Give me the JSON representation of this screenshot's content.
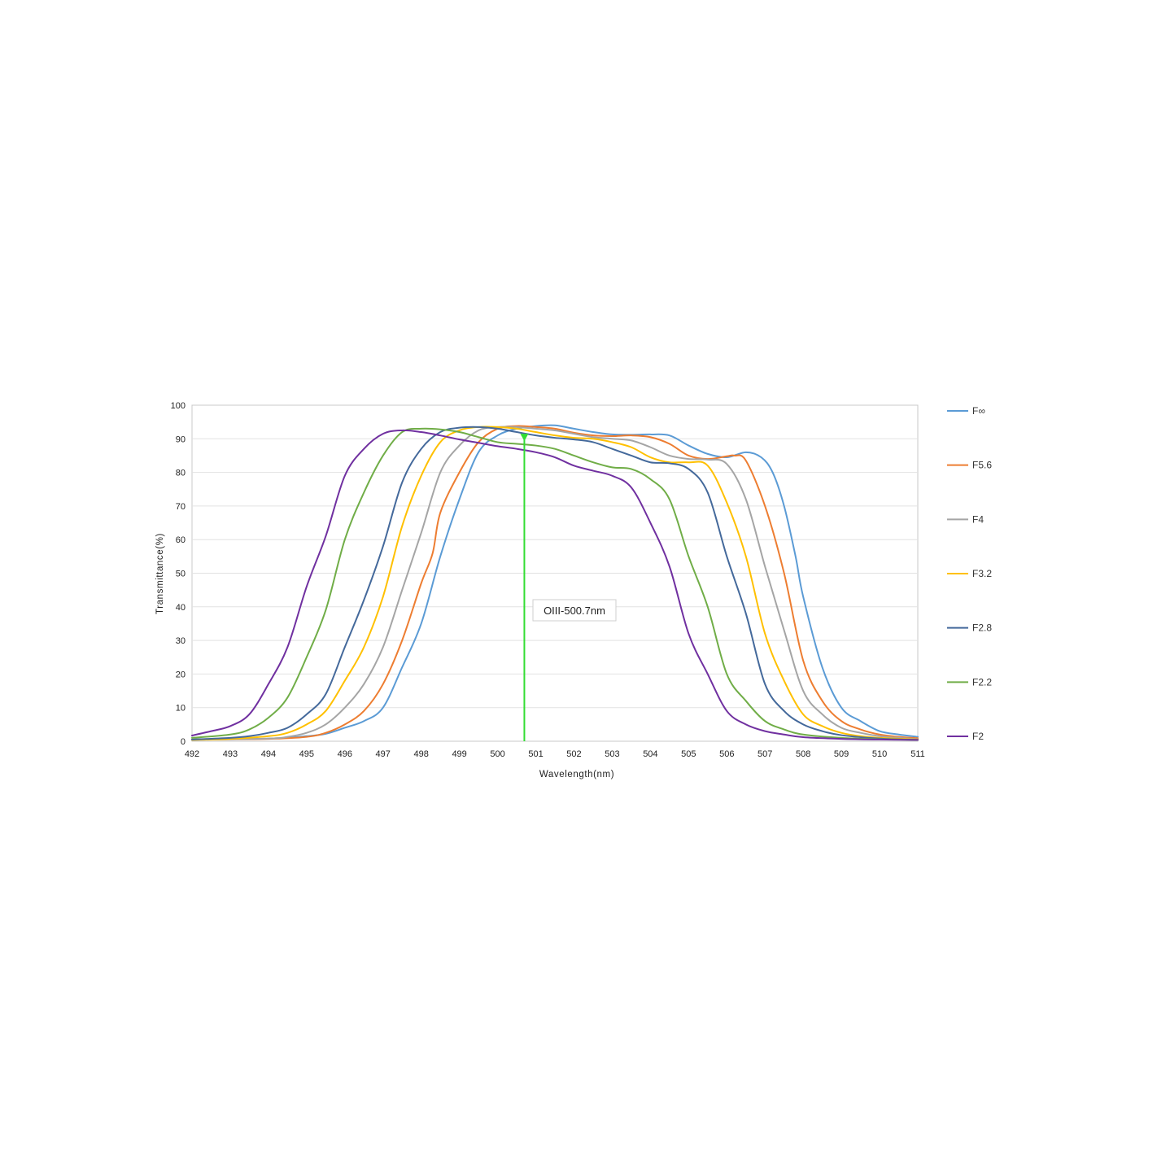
{
  "chart_data": {
    "type": "line",
    "title": "",
    "xlabel": "Wavelength(nm)",
    "ylabel": "Transmittance(%)",
    "xlim": [
      492,
      511
    ],
    "ylim": [
      0,
      100
    ],
    "x_ticks": [
      492,
      493,
      494,
      495,
      496,
      497,
      498,
      499,
      500,
      501,
      502,
      503,
      504,
      505,
      506,
      507,
      508,
      509,
      510,
      511
    ],
    "y_ticks": [
      0,
      10,
      20,
      30,
      40,
      50,
      60,
      70,
      80,
      90,
      100
    ],
    "grid": "horizontal",
    "legend_position": "right",
    "series": [
      {
        "name": "F∞",
        "color": "#5b9bd5",
        "points": [
          [
            492,
            0.5
          ],
          [
            494,
            0.8
          ],
          [
            495,
            1.5
          ],
          [
            495.5,
            2.2
          ],
          [
            496,
            4
          ],
          [
            496.5,
            6
          ],
          [
            497,
            10
          ],
          [
            497.5,
            22
          ],
          [
            498,
            35
          ],
          [
            498.5,
            55
          ],
          [
            499,
            72
          ],
          [
            499.5,
            86
          ],
          [
            500,
            91
          ],
          [
            500.5,
            93
          ],
          [
            501,
            93.8
          ],
          [
            501.5,
            94
          ],
          [
            502,
            93
          ],
          [
            502.5,
            92
          ],
          [
            503,
            91.3
          ],
          [
            503.5,
            91.2
          ],
          [
            504,
            91.3
          ],
          [
            504.5,
            91
          ],
          [
            505,
            88
          ],
          [
            505.5,
            85.5
          ],
          [
            506,
            84.5
          ],
          [
            506.5,
            86
          ],
          [
            506.9,
            84.5
          ],
          [
            507.2,
            80
          ],
          [
            507.5,
            70
          ],
          [
            507.8,
            55
          ],
          [
            508,
            43
          ],
          [
            508.5,
            22
          ],
          [
            509,
            10
          ],
          [
            509.5,
            6
          ],
          [
            510,
            3
          ],
          [
            510.5,
            2
          ],
          [
            511,
            1.3
          ]
        ]
      },
      {
        "name": "F5.6",
        "color": "#ed7d31",
        "points": [
          [
            492,
            0.5
          ],
          [
            494,
            0.7
          ],
          [
            495,
            1.3
          ],
          [
            495.5,
            2.5
          ],
          [
            496,
            5
          ],
          [
            496.5,
            9
          ],
          [
            497,
            17
          ],
          [
            497.5,
            30
          ],
          [
            498,
            47
          ],
          [
            498.3,
            56
          ],
          [
            498.5,
            68
          ],
          [
            499,
            80
          ],
          [
            499.5,
            89
          ],
          [
            500,
            93
          ],
          [
            500.5,
            93.8
          ],
          [
            501,
            93.5
          ],
          [
            501.5,
            93
          ],
          [
            502,
            91.8
          ],
          [
            502.5,
            91
          ],
          [
            503,
            90.8
          ],
          [
            503.5,
            91
          ],
          [
            504,
            90.5
          ],
          [
            504.5,
            88.5
          ],
          [
            505,
            85
          ],
          [
            505.5,
            84
          ],
          [
            506,
            84.8
          ],
          [
            506.2,
            85
          ],
          [
            506.5,
            83.5
          ],
          [
            507,
            70
          ],
          [
            507.5,
            50
          ],
          [
            508,
            24
          ],
          [
            508.5,
            12
          ],
          [
            509,
            6
          ],
          [
            509.5,
            3.5
          ],
          [
            510,
            2
          ],
          [
            510.5,
            1.3
          ],
          [
            511,
            0.9
          ]
        ]
      },
      {
        "name": "F4",
        "color": "#a5a5a5",
        "points": [
          [
            492,
            0.4
          ],
          [
            494,
            0.8
          ],
          [
            494.5,
            1.3
          ],
          [
            495,
            2.5
          ],
          [
            495.5,
            5
          ],
          [
            496,
            10
          ],
          [
            496.5,
            17
          ],
          [
            497,
            28
          ],
          [
            497.5,
            45
          ],
          [
            498,
            62
          ],
          [
            498.5,
            80
          ],
          [
            499,
            88
          ],
          [
            499.5,
            92.5
          ],
          [
            500,
            93.5
          ],
          [
            500.5,
            93.5
          ],
          [
            501,
            93
          ],
          [
            501.5,
            92.5
          ],
          [
            502,
            91.5
          ],
          [
            502.5,
            90.5
          ],
          [
            503,
            90
          ],
          [
            503.5,
            89.5
          ],
          [
            504,
            87.5
          ],
          [
            504.5,
            85
          ],
          [
            505,
            84
          ],
          [
            505.5,
            83.8
          ],
          [
            506,
            82.5
          ],
          [
            506.5,
            72
          ],
          [
            507,
            52
          ],
          [
            507.5,
            33
          ],
          [
            508,
            15
          ],
          [
            508.5,
            8
          ],
          [
            509,
            4
          ],
          [
            509.5,
            2.5
          ],
          [
            510,
            1.5
          ],
          [
            510.5,
            1
          ],
          [
            511,
            0.6
          ]
        ]
      },
      {
        "name": "F3.2",
        "color": "#ffc000",
        "points": [
          [
            492,
            0.4
          ],
          [
            493,
            0.7
          ],
          [
            494,
            1.5
          ],
          [
            494.5,
            2.5
          ],
          [
            495,
            5
          ],
          [
            495.5,
            9
          ],
          [
            496,
            18
          ],
          [
            496.5,
            28
          ],
          [
            497,
            43
          ],
          [
            497.5,
            64
          ],
          [
            498,
            79
          ],
          [
            498.5,
            89
          ],
          [
            499,
            92.5
          ],
          [
            499.5,
            93.5
          ],
          [
            500,
            93.5
          ],
          [
            500.5,
            93
          ],
          [
            501,
            92
          ],
          [
            501.5,
            91
          ],
          [
            502,
            90.3
          ],
          [
            502.5,
            90
          ],
          [
            503,
            89
          ],
          [
            503.5,
            87.5
          ],
          [
            504,
            84.5
          ],
          [
            504.5,
            83
          ],
          [
            505,
            83
          ],
          [
            505.5,
            82
          ],
          [
            506,
            71
          ],
          [
            506.5,
            55
          ],
          [
            507,
            32
          ],
          [
            507.5,
            18
          ],
          [
            508,
            8
          ],
          [
            508.5,
            4.5
          ],
          [
            509,
            2.5
          ],
          [
            509.5,
            1.5
          ],
          [
            510,
            1
          ],
          [
            511,
            0.5
          ]
        ]
      },
      {
        "name": "F2.8",
        "color": "#44699b",
        "points": [
          [
            492,
            0.5
          ],
          [
            493,
            1
          ],
          [
            493.5,
            1.5
          ],
          [
            494,
            2.5
          ],
          [
            494.5,
            4
          ],
          [
            495,
            8
          ],
          [
            495.5,
            14
          ],
          [
            496,
            28
          ],
          [
            496.5,
            42
          ],
          [
            497,
            58
          ],
          [
            497.5,
            77
          ],
          [
            498,
            87
          ],
          [
            498.5,
            92
          ],
          [
            499,
            93.3
          ],
          [
            499.5,
            93.5
          ],
          [
            500,
            93
          ],
          [
            500.5,
            92
          ],
          [
            501,
            91
          ],
          [
            501.5,
            90.3
          ],
          [
            502,
            89.8
          ],
          [
            502.5,
            89
          ],
          [
            503,
            87
          ],
          [
            503.5,
            85
          ],
          [
            504,
            83
          ],
          [
            504.5,
            82.7
          ],
          [
            505,
            81
          ],
          [
            505.5,
            74
          ],
          [
            506,
            55
          ],
          [
            506.5,
            38
          ],
          [
            507,
            17
          ],
          [
            507.5,
            9
          ],
          [
            508,
            5
          ],
          [
            508.5,
            3
          ],
          [
            509,
            1.8
          ],
          [
            510,
            0.8
          ],
          [
            511,
            0.4
          ]
        ]
      },
      {
        "name": "F2.2",
        "color": "#70ad47",
        "points": [
          [
            492,
            1
          ],
          [
            493,
            2
          ],
          [
            493.5,
            3.5
          ],
          [
            494,
            7
          ],
          [
            494.5,
            13
          ],
          [
            495,
            25
          ],
          [
            495.5,
            39
          ],
          [
            496,
            60
          ],
          [
            496.5,
            74
          ],
          [
            497,
            85
          ],
          [
            497.5,
            92
          ],
          [
            498,
            93
          ],
          [
            498.5,
            92.8
          ],
          [
            499,
            92
          ],
          [
            499.5,
            90.5
          ],
          [
            500,
            89
          ],
          [
            500.5,
            88.5
          ],
          [
            501,
            88
          ],
          [
            501.5,
            87
          ],
          [
            502,
            85
          ],
          [
            502.5,
            83
          ],
          [
            503,
            81.5
          ],
          [
            503.5,
            81
          ],
          [
            504,
            78
          ],
          [
            504.5,
            72
          ],
          [
            505,
            55
          ],
          [
            505.5,
            40
          ],
          [
            506,
            20
          ],
          [
            506.5,
            12
          ],
          [
            507,
            6
          ],
          [
            507.5,
            3.5
          ],
          [
            508,
            2
          ],
          [
            509,
            1
          ],
          [
            510,
            0.6
          ],
          [
            511,
            0.4
          ]
        ]
      },
      {
        "name": "F2",
        "color": "#7030a0",
        "points": [
          [
            492,
            1.7
          ],
          [
            492.5,
            3
          ],
          [
            493,
            4.5
          ],
          [
            493.5,
            8
          ],
          [
            494,
            17
          ],
          [
            494.5,
            28
          ],
          [
            495,
            46
          ],
          [
            495.5,
            61
          ],
          [
            496,
            79
          ],
          [
            496.5,
            87
          ],
          [
            497,
            91.5
          ],
          [
            497.5,
            92.5
          ],
          [
            498,
            92
          ],
          [
            498.5,
            91
          ],
          [
            499,
            89.8
          ],
          [
            499.5,
            88.8
          ],
          [
            500,
            87.8
          ],
          [
            500.5,
            87
          ],
          [
            501,
            86
          ],
          [
            501.5,
            84.5
          ],
          [
            502,
            82
          ],
          [
            502.5,
            80.5
          ],
          [
            503,
            79
          ],
          [
            503.5,
            75.5
          ],
          [
            504,
            65
          ],
          [
            504.5,
            52
          ],
          [
            505,
            32
          ],
          [
            505.5,
            20
          ],
          [
            506,
            9
          ],
          [
            506.5,
            5
          ],
          [
            507,
            3
          ],
          [
            507.5,
            2
          ],
          [
            508,
            1.2
          ],
          [
            509,
            0.7
          ],
          [
            510,
            0.5
          ],
          [
            511,
            0.4
          ]
        ]
      }
    ],
    "annotations": [
      {
        "type": "vertical_marker",
        "x": 500.7,
        "y_top": 91,
        "color": "#33dd33",
        "label": "OIII-500.7nm"
      }
    ]
  }
}
